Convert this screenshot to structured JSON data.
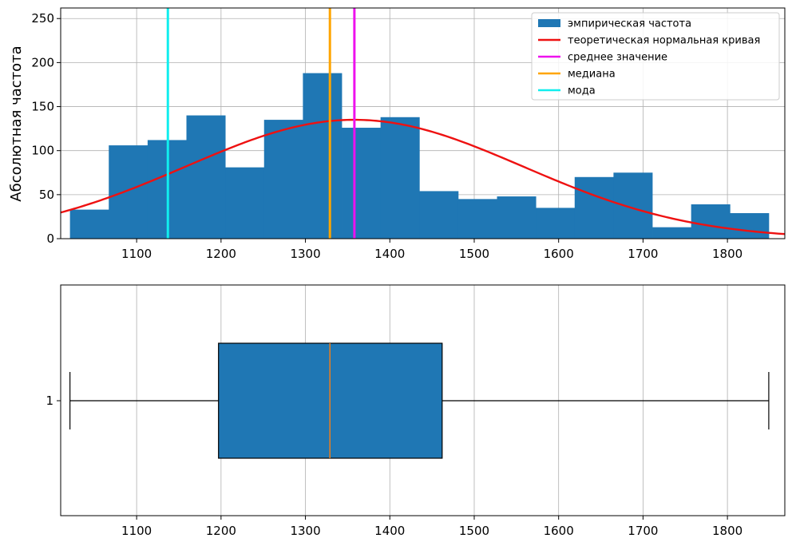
{
  "chart_data": [
    {
      "type": "bar",
      "title": "",
      "xlabel": "",
      "ylabel": "Абсолютная частота",
      "xlim": [
        1010,
        1868
      ],
      "ylim": [
        0,
        262
      ],
      "grid": true,
      "legend_position": "top-right",
      "x_ticks": [
        1100,
        1200,
        1300,
        1400,
        1500,
        1600,
        1700,
        1800
      ],
      "y_ticks": [
        0,
        50,
        100,
        150,
        200,
        250
      ],
      "bin_edges": [
        1021,
        1067,
        1113,
        1159,
        1205,
        1251,
        1297,
        1343,
        1389,
        1435,
        1481,
        1527,
        1573,
        1619,
        1665,
        1711,
        1757,
        1803,
        1849
      ],
      "series": [
        {
          "name": "эмпирическая частота",
          "kind": "histogram",
          "color": "#1f77b4",
          "values": [
            33,
            106,
            112,
            140,
            81,
            135,
            188,
            126,
            138,
            54,
            45,
            48,
            35,
            70,
            75,
            13,
            39,
            29
          ]
        },
        {
          "name": "теоретическая нормальная кривая",
          "kind": "curve",
          "color": "#ee1111",
          "mean": 1358,
          "std": 200,
          "peak": 135
        },
        {
          "name": "среднее значение",
          "kind": "vline",
          "color": "#ee11ee",
          "x": 1358
        },
        {
          "name": "медиана",
          "kind": "vline",
          "color": "#ffa500",
          "x": 1329
        },
        {
          "name": "мода",
          "kind": "vline",
          "color": "#11eeee",
          "x": 1137
        }
      ]
    },
    {
      "type": "box",
      "title": "",
      "xlim": [
        1010,
        1868
      ],
      "grid": true,
      "x_ticks": [
        1100,
        1200,
        1300,
        1400,
        1500,
        1600,
        1700,
        1800
      ],
      "category_label": "1",
      "color": "#1f77b4",
      "median_color": "#ff7f0e",
      "min": 1021,
      "q1": 1197,
      "median": 1329,
      "q3": 1462,
      "max": 1849
    }
  ]
}
